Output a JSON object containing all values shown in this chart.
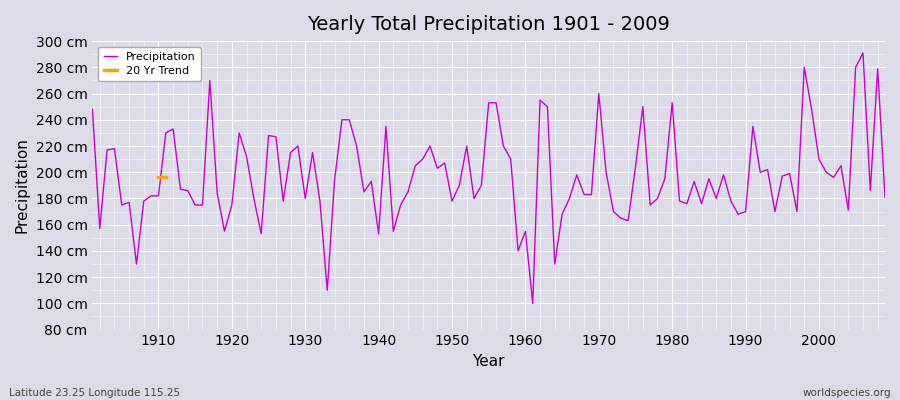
{
  "title": "Yearly Total Precipitation 1901 - 2009",
  "xlabel": "Year",
  "ylabel": "Precipitation",
  "subtitle_left": "Latitude 23.25 Longitude 115.25",
  "subtitle_right": "worldspecies.org",
  "ylim": [
    80,
    300
  ],
  "yticks": [
    80,
    100,
    120,
    140,
    160,
    180,
    200,
    220,
    240,
    260,
    280,
    300
  ],
  "bg_color": "#dcdce8",
  "fig_color": "#dcdce8",
  "line_color": "#cc00cc",
  "trend_color": "#ffa500",
  "legend_entries": [
    "Precipitation",
    "20 Yr Trend"
  ],
  "years": [
    1901,
    1902,
    1903,
    1904,
    1905,
    1906,
    1907,
    1908,
    1909,
    1910,
    1911,
    1912,
    1913,
    1914,
    1915,
    1916,
    1917,
    1918,
    1919,
    1920,
    1921,
    1922,
    1923,
    1924,
    1925,
    1926,
    1927,
    1928,
    1929,
    1930,
    1931,
    1932,
    1933,
    1934,
    1935,
    1936,
    1937,
    1938,
    1939,
    1940,
    1941,
    1942,
    1943,
    1944,
    1945,
    1946,
    1947,
    1948,
    1949,
    1950,
    1951,
    1952,
    1953,
    1954,
    1955,
    1956,
    1957,
    1958,
    1959,
    1960,
    1961,
    1962,
    1963,
    1964,
    1965,
    1966,
    1967,
    1968,
    1969,
    1970,
    1971,
    1972,
    1973,
    1974,
    1975,
    1976,
    1977,
    1978,
    1979,
    1980,
    1981,
    1982,
    1983,
    1984,
    1985,
    1986,
    1987,
    1988,
    1989,
    1990,
    1991,
    1992,
    1993,
    1994,
    1995,
    1996,
    1997,
    1998,
    1999,
    2000,
    2001,
    2002,
    2003,
    2004,
    2005,
    2006,
    2007,
    2008,
    2009
  ],
  "precip": [
    248,
    157,
    217,
    218,
    175,
    177,
    130,
    178,
    182,
    182,
    230,
    233,
    187,
    186,
    175,
    175,
    270,
    184,
    155,
    175,
    230,
    212,
    180,
    153,
    228,
    227,
    178,
    215,
    220,
    180,
    215,
    178,
    110,
    194,
    240,
    240,
    220,
    185,
    193,
    153,
    235,
    155,
    175,
    185,
    205,
    210,
    220,
    203,
    207,
    178,
    190,
    220,
    180,
    190,
    253,
    253,
    220,
    210,
    140,
    155,
    100,
    255,
    250,
    130,
    168,
    180,
    198,
    183,
    183,
    260,
    200,
    170,
    165,
    163,
    204,
    250,
    175,
    180,
    195,
    253,
    178,
    176,
    193,
    176,
    195,
    180,
    198,
    178,
    168,
    170,
    235,
    200,
    202,
    170,
    197,
    199,
    170,
    280,
    248,
    210,
    200,
    196,
    205,
    171,
    280,
    291,
    186,
    279,
    181
  ],
  "trend_years": [
    1910,
    1911
  ],
  "trend_values": [
    196,
    196
  ],
  "xlim": [
    1901,
    2009
  ],
  "xticks": [
    1910,
    1920,
    1930,
    1940,
    1950,
    1960,
    1970,
    1980,
    1990,
    2000
  ]
}
